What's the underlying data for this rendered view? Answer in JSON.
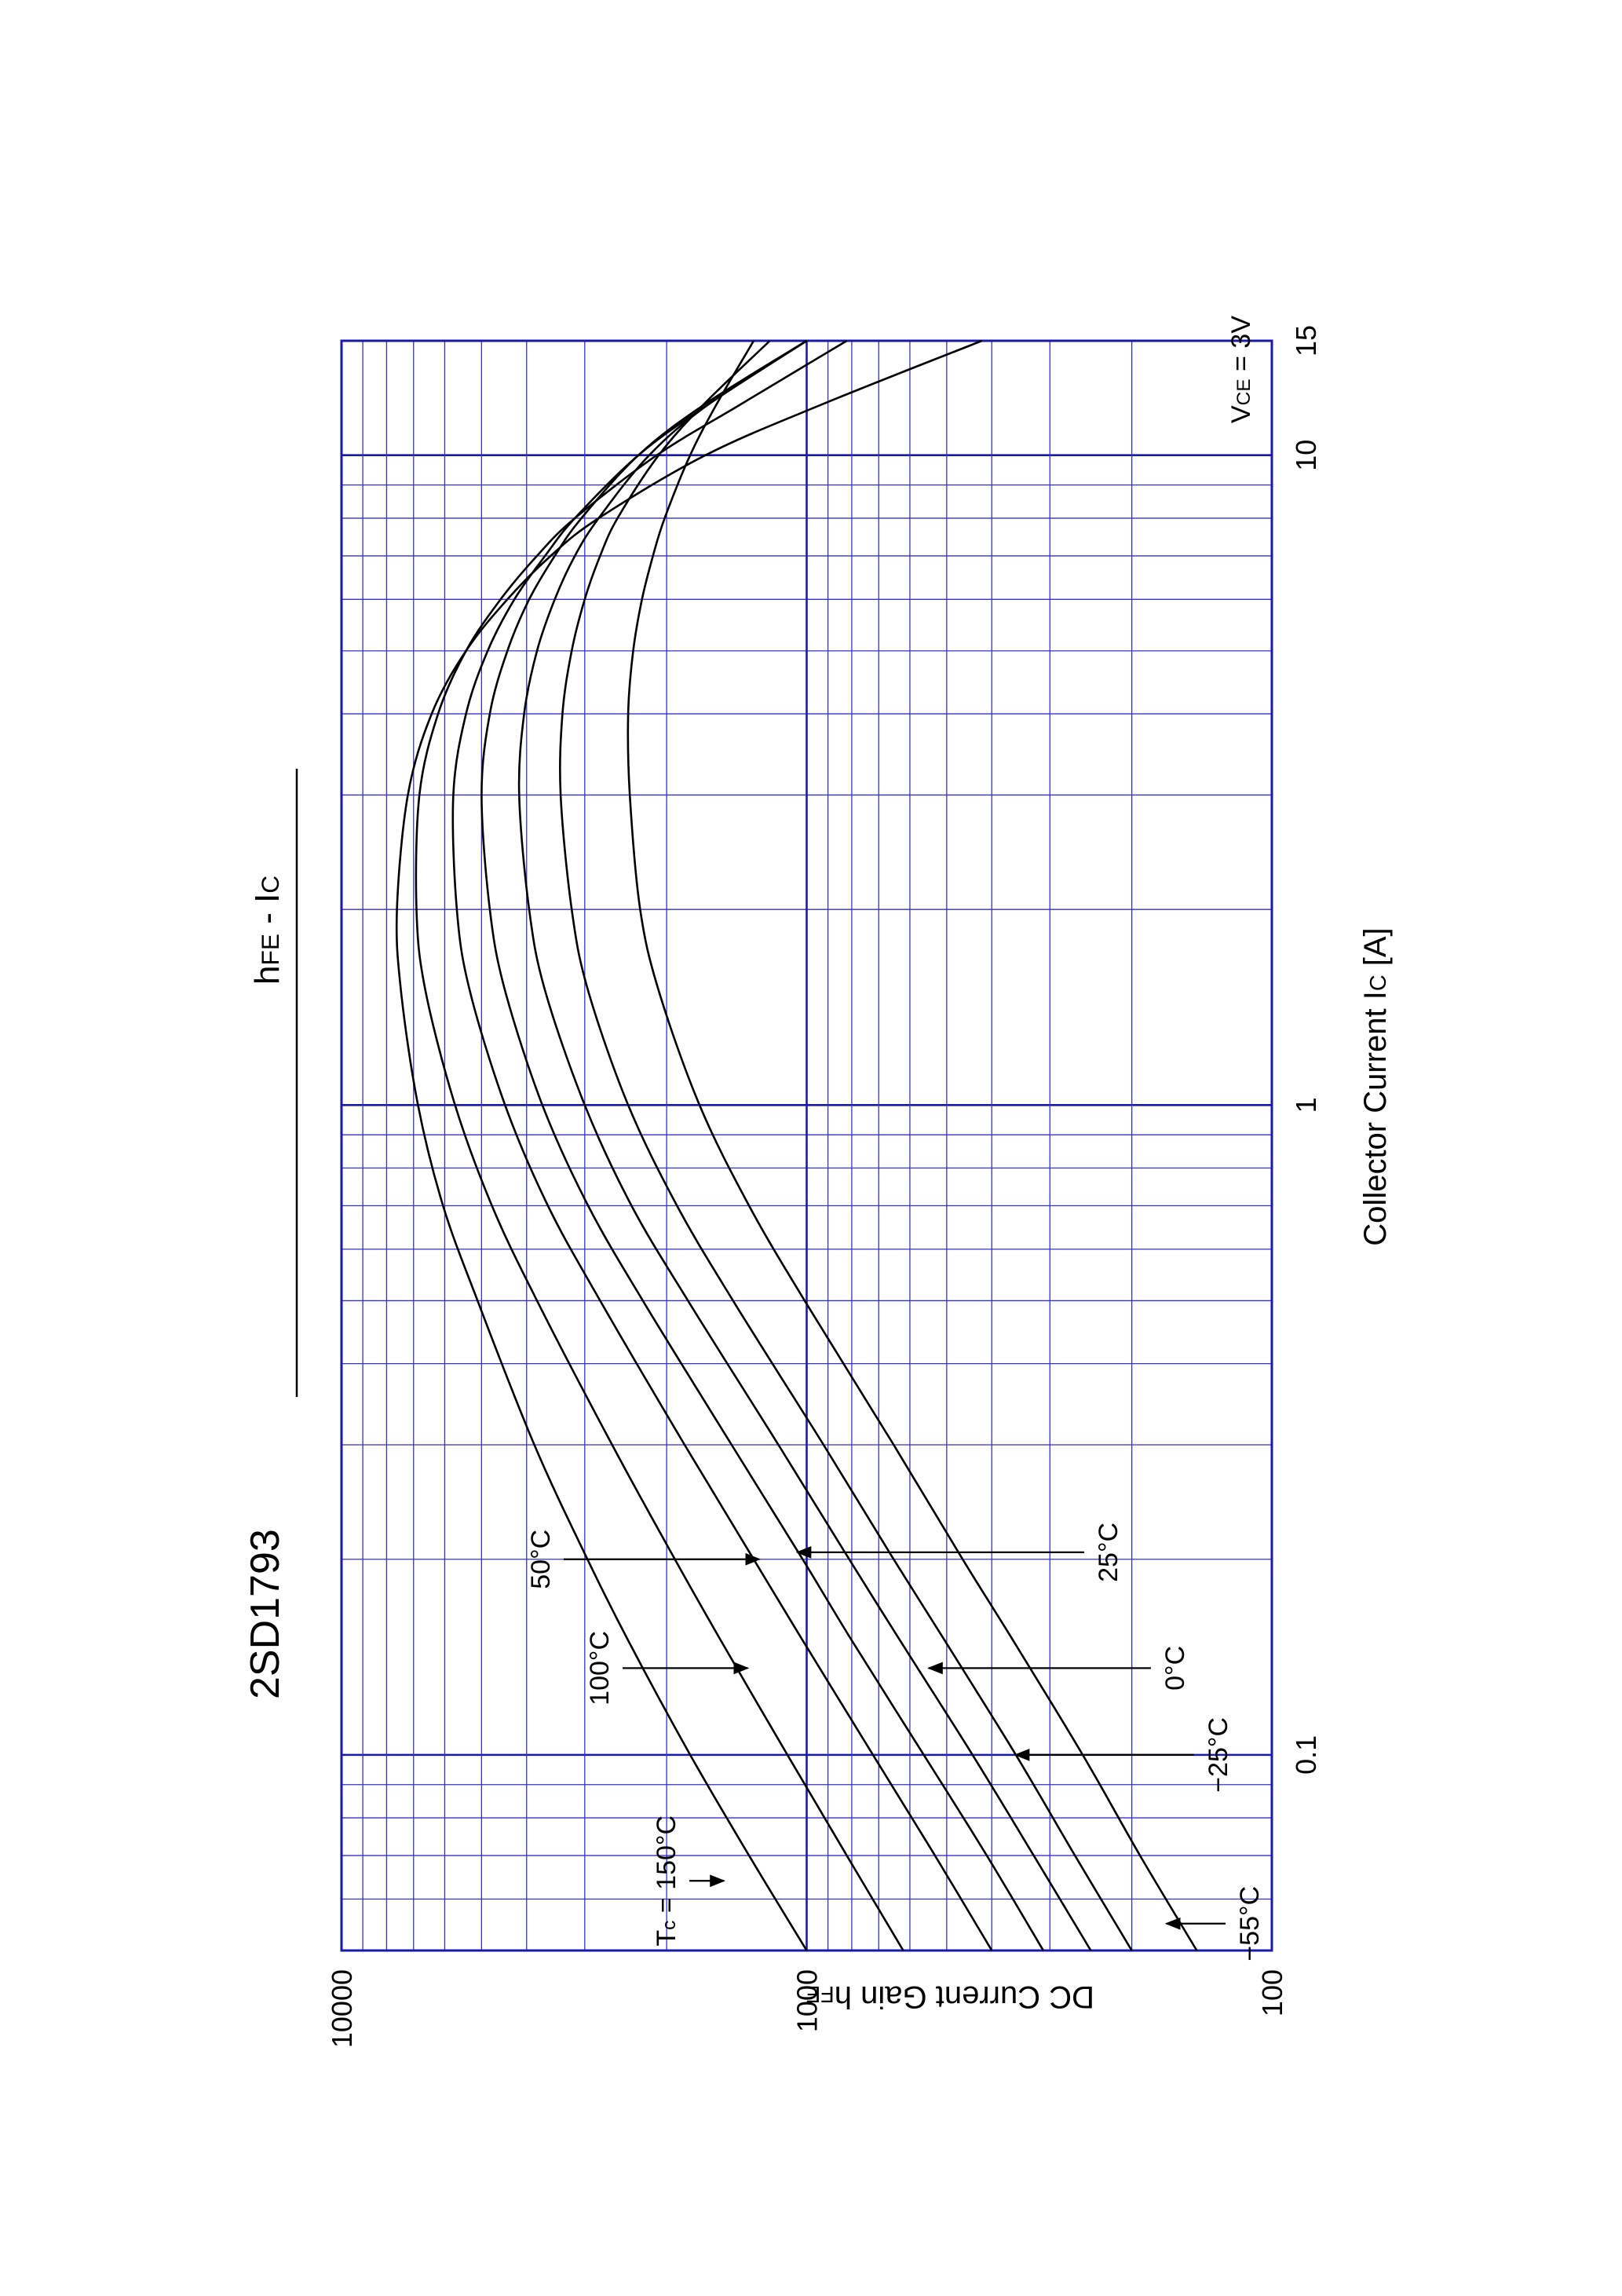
{
  "page_title": "2SD1793",
  "chart_data": {
    "type": "line",
    "title": "hFE - IC",
    "title_parts": {
      "main": "h",
      "main_sub": "FE",
      "sep": " - ",
      "second": "I",
      "second_sub": "C"
    },
    "xlabel": "Collector Current  IC [A]",
    "xlabel_parts": {
      "text": "Collector Current  I",
      "sub": "C",
      "unit": " [A]"
    },
    "ylabel": "DC Current Gain  hFE",
    "ylabel_parts": {
      "text": "DC Current Gain  h",
      "sub": "FE"
    },
    "x_scale": "log",
    "y_scale": "log",
    "xlim": [
      0.05,
      15
    ],
    "ylim": [
      100,
      10000
    ],
    "x_ticks": [
      0.1,
      1,
      10,
      15
    ],
    "x_tick_labels": [
      "0.1",
      "1",
      "10",
      "15"
    ],
    "y_ticks": [
      100,
      1000,
      10000
    ],
    "y_tick_labels": [
      "100",
      "1000",
      "10000"
    ],
    "grid": true,
    "condition": "VCE = 3V",
    "condition_parts": {
      "v": "V",
      "sub": "CE",
      "rest": " = 3V"
    },
    "grid_color": "#3333cc",
    "curve_color": "#000000",
    "x": [
      0.05,
      0.07,
      0.1,
      0.15,
      0.2,
      0.3,
      0.5,
      0.7,
      1,
      1.5,
      2,
      3,
      4,
      5,
      6,
      7,
      8,
      10,
      12,
      15
    ],
    "series": [
      {
        "name": "Tc = 150°C",
        "values": [
          1000,
          1330,
          1780,
          2420,
          2960,
          3850,
          5100,
          6050,
          6850,
          7450,
          7600,
          7200,
          6400,
          5400,
          4400,
          3550,
          2800,
          1650,
          920,
          420
        ]
      },
      {
        "name": "100°C",
        "values": [
          620,
          820,
          1100,
          1530,
          1920,
          2620,
          3800,
          4750,
          5700,
          6600,
          6900,
          6800,
          6200,
          5400,
          4550,
          3800,
          3150,
          2100,
          1380,
          820
        ]
      },
      {
        "name": "50°C",
        "values": [
          400,
          530,
          720,
          1020,
          1300,
          1830,
          2780,
          3600,
          4450,
          5300,
          5650,
          5750,
          5400,
          4850,
          4250,
          3650,
          3150,
          2300,
          1620,
          1000
        ]
      },
      {
        "name": "25°C",
        "values": [
          310,
          410,
          560,
          800,
          1020,
          1450,
          2250,
          2950,
          3700,
          4450,
          4800,
          5000,
          4800,
          4400,
          3950,
          3480,
          3050,
          2300,
          1650,
          1000
        ]
      },
      {
        "name": "0°C",
        "values": [
          245,
          325,
          440,
          630,
          810,
          1150,
          1800,
          2380,
          3000,
          3650,
          3950,
          4150,
          4050,
          3800,
          3480,
          3150,
          2800,
          2180,
          1620,
          1000
        ]
      },
      {
        "name": "-25°C",
        "values": [
          200,
          265,
          355,
          505,
          650,
          920,
          1440,
          1900,
          2420,
          2950,
          3200,
          3380,
          3350,
          3200,
          3000,
          2780,
          2550,
          2080,
          1660,
          1200
        ]
      },
      {
        "name": "-55°C",
        "values": [
          145,
          192,
          255,
          360,
          462,
          650,
          1010,
          1330,
          1700,
          2080,
          2280,
          2400,
          2420,
          2360,
          2260,
          2140,
          2020,
          1780,
          1560,
          1300
        ]
      }
    ],
    "annotations": [
      {
        "label": "Tc = 150°C",
        "sub": "C",
        "series": "Tc = 150°C",
        "x": 0.08
      },
      {
        "label": "100°C",
        "series": "100°C",
        "x": 0.125
      },
      {
        "label": "50°C",
        "series": "50°C",
        "x": 0.19
      },
      {
        "label": "25°C",
        "series": "25°C",
        "x": 0.21
      },
      {
        "label": "0°C",
        "series": "0°C",
        "x": 0.13
      },
      {
        "label": "−25°C",
        "series": "-25°C",
        "x": 0.102
      },
      {
        "label": "−55°C",
        "series": "-55°C",
        "x": 0.061
      }
    ]
  }
}
